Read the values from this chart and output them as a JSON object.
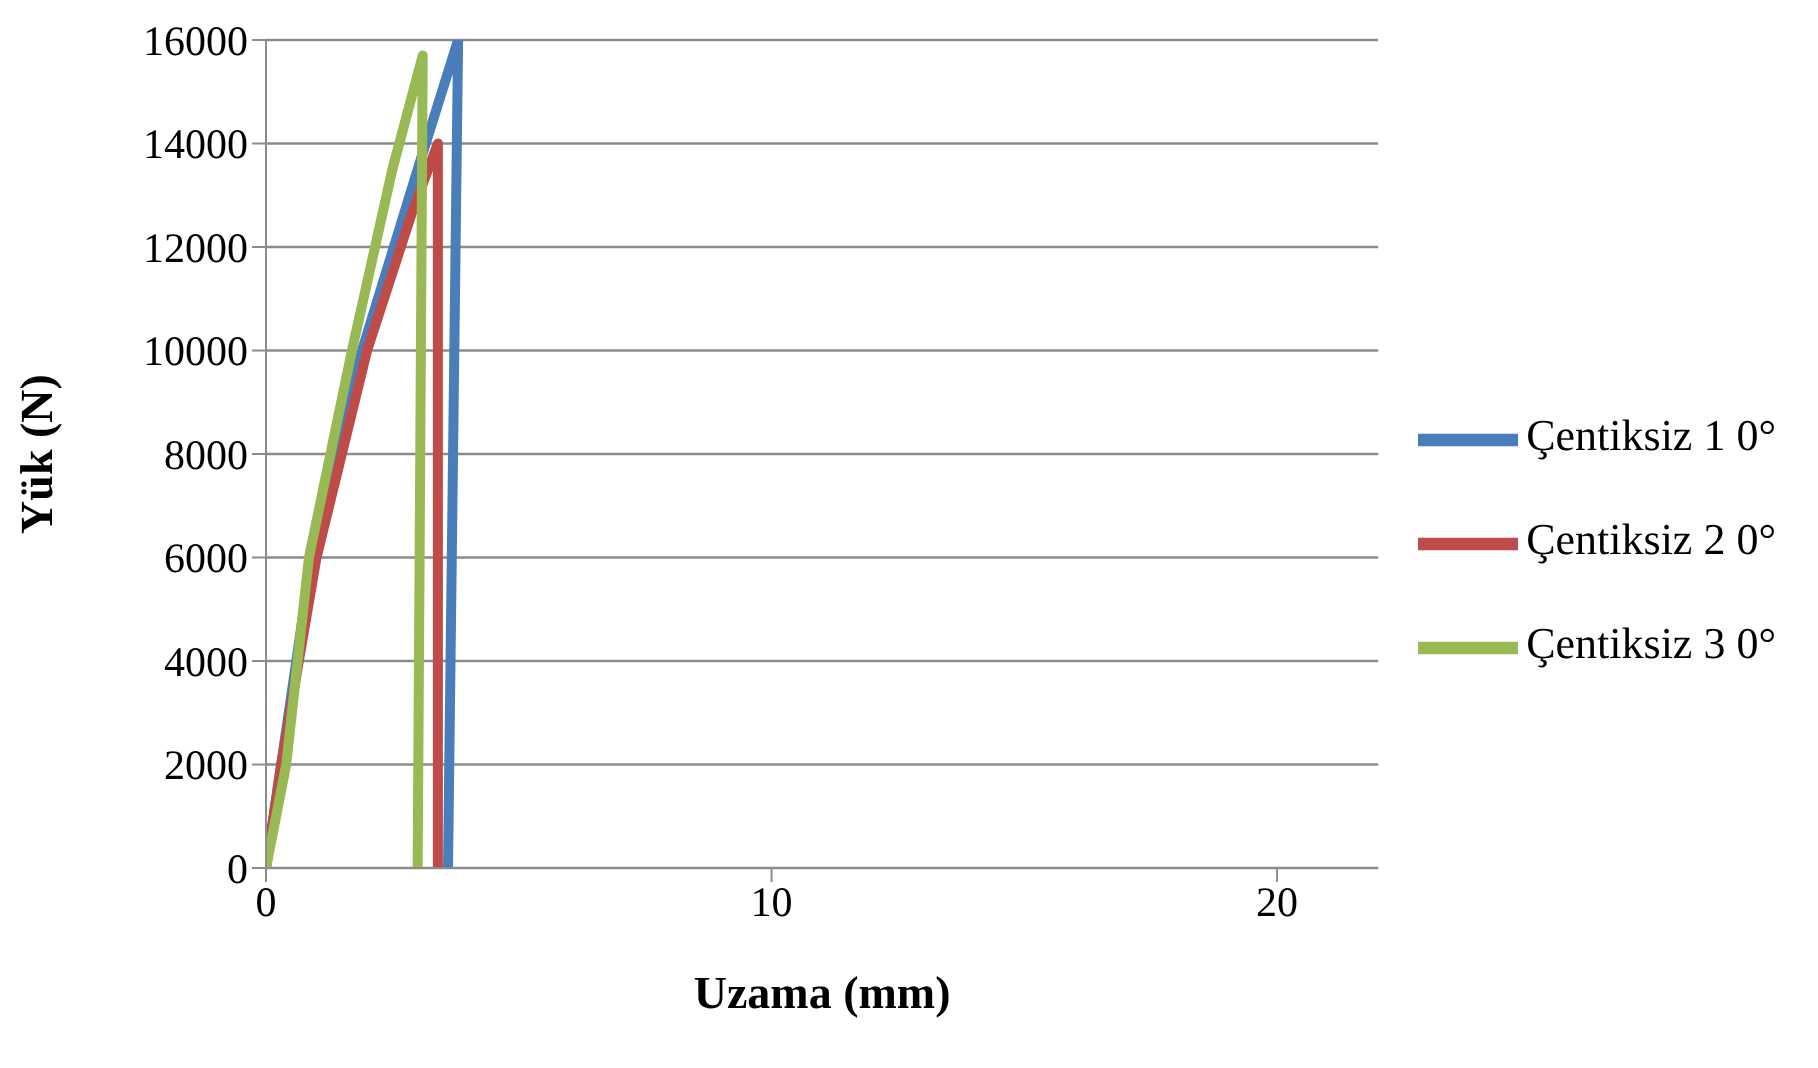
{
  "chart_data": {
    "type": "line",
    "xlabel": "Uzama  (mm)",
    "ylabel": "Yük  (N)",
    "xlim": [
      0,
      22
    ],
    "xticks": [
      0,
      10,
      20
    ],
    "ylim": [
      0,
      16000
    ],
    "yticks": [
      0,
      2000,
      4000,
      6000,
      8000,
      10000,
      12000,
      14000,
      16000
    ],
    "grid": "y",
    "legend": "right",
    "marker": "none",
    "line_style": "solid",
    "series": [
      {
        "name": "Çentiksiz  1 0°",
        "color": "#4a7ebb",
        "x": [
          0,
          0.9,
          1.9,
          3.0,
          3.8,
          3.6
        ],
        "values": [
          0,
          6000,
          10000,
          13500,
          16000,
          0
        ]
      },
      {
        "name": "Çentiksiz  2 0°",
        "color": "#be4b48",
        "x": [
          0,
          0.3,
          1.0,
          2.0,
          2.9,
          3.4,
          3.4
        ],
        "values": [
          0,
          2000,
          6000,
          10000,
          12700,
          14000,
          0
        ]
      },
      {
        "name": "Çentiksiz  3 0°",
        "color": "#98b954",
        "x": [
          0,
          0.4,
          0.85,
          1.7,
          2.5,
          3.1,
          3.0
        ],
        "values": [
          0,
          2000,
          6000,
          10000,
          13500,
          15700,
          0
        ]
      }
    ]
  }
}
